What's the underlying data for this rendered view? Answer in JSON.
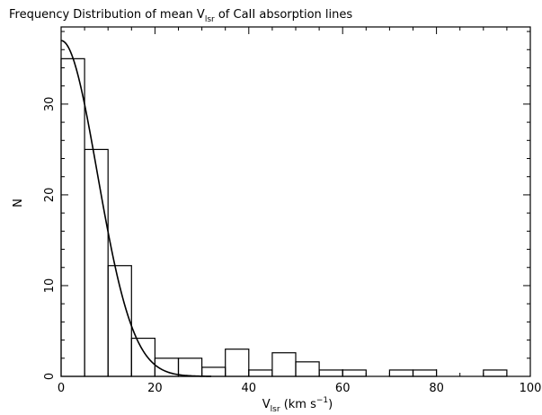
{
  "chart_data": {
    "type": "bar",
    "title": "Frequency Distribution of mean V",
    "title_sub": "lsr",
    "title_tail": " of CaII absorption lines",
    "xlabel": "V",
    "xlabel_sub": "lsr",
    "xlabel_units": " (km s",
    "xlabel_sup": "−1",
    "xlabel_close": ")",
    "ylabel": "N",
    "xlim": [
      0,
      100
    ],
    "ylim": [
      0,
      38.5
    ],
    "grid": false,
    "bin_width": 5,
    "bins": [
      {
        "x0": 0,
        "x1": 5,
        "n": 35
      },
      {
        "x0": 5,
        "x1": 10,
        "n": 25
      },
      {
        "x0": 10,
        "x1": 15,
        "n": 12.2
      },
      {
        "x0": 15,
        "x1": 20,
        "n": 4.2
      },
      {
        "x0": 20,
        "x1": 25,
        "n": 2
      },
      {
        "x0": 25,
        "x1": 30,
        "n": 2
      },
      {
        "x0": 30,
        "x1": 35,
        "n": 1
      },
      {
        "x0": 35,
        "x1": 40,
        "n": 3
      },
      {
        "x0": 40,
        "x1": 45,
        "n": 0.7
      },
      {
        "x0": 45,
        "x1": 50,
        "n": 2.6
      },
      {
        "x0": 50,
        "x1": 55,
        "n": 1.6
      },
      {
        "x0": 55,
        "x1": 60,
        "n": 0.7
      },
      {
        "x0": 60,
        "x1": 65,
        "n": 0.7
      },
      {
        "x0": 65,
        "x1": 70,
        "n": 0
      },
      {
        "x0": 70,
        "x1": 75,
        "n": 0.7
      },
      {
        "x0": 75,
        "x1": 80,
        "n": 0.7
      },
      {
        "x0": 80,
        "x1": 85,
        "n": 0
      },
      {
        "x0": 85,
        "x1": 90,
        "n": 0
      },
      {
        "x0": 90,
        "x1": 95,
        "n": 0.7
      },
      {
        "x0": 95,
        "x1": 100,
        "n": 0
      }
    ],
    "fit_curve": {
      "type": "gaussian",
      "amplitude": 37,
      "mean": 0,
      "sigma": 7.7
    },
    "x_ticks": [
      0,
      20,
      40,
      60,
      80,
      100
    ],
    "y_ticks": [
      0,
      10,
      20,
      30
    ]
  }
}
